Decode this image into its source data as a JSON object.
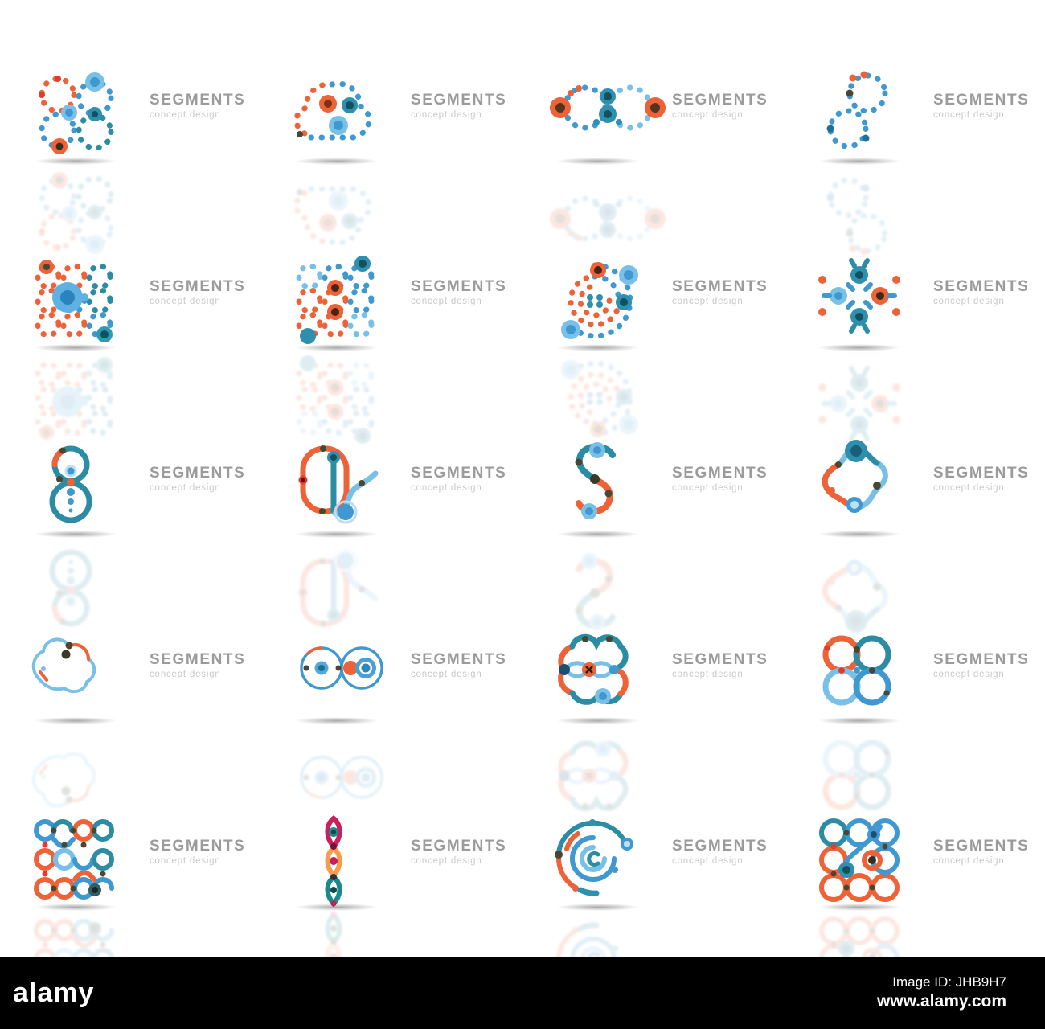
{
  "page": {
    "background": "#ffffff"
  },
  "colors": {
    "orange": "#ee6238",
    "blue": "#3f98cf",
    "teal": "#2b8ca3",
    "light_blue": "#79c0e8",
    "magenta": "#c81f5e",
    "title_gray": "#9b9b9b",
    "tagline_gray": "#c9c9c9",
    "bar_black": "#000000"
  },
  "logos": [
    {
      "name": "dotted-eight-pair",
      "title": "SEGMENTS",
      "tagline": "concept design"
    },
    {
      "name": "dotted-cloud-triangle",
      "title": "SEGMENTS",
      "tagline": "concept design"
    },
    {
      "name": "dotted-infinity",
      "title": "SEGMENTS",
      "tagline": "concept design"
    },
    {
      "name": "dotted-s-curve",
      "title": "SEGMENTS",
      "tagline": "concept design"
    },
    {
      "name": "dotted-grid-blue-dot",
      "title": "SEGMENTS",
      "tagline": "concept design"
    },
    {
      "name": "dotted-grid-orange-dots",
      "title": "SEGMENTS",
      "tagline": "concept design"
    },
    {
      "name": "dotted-spiral",
      "title": "SEGMENTS",
      "tagline": "concept design"
    },
    {
      "name": "dot-cross-star",
      "title": "SEGMENTS",
      "tagline": "concept design"
    },
    {
      "name": "peanut-outline",
      "title": "SEGMENTS",
      "tagline": "concept design"
    },
    {
      "name": "rounded-rect-swoosh",
      "title": "SEGMENTS",
      "tagline": "concept design"
    },
    {
      "name": "letter-s",
      "title": "SEGMENTS",
      "tagline": "concept design"
    },
    {
      "name": "four-lobe-clover",
      "title": "SEGMENTS",
      "tagline": "concept design"
    },
    {
      "name": "heart-blob-outline",
      "title": "SEGMENTS",
      "tagline": "concept design"
    },
    {
      "name": "dumbbell-outline",
      "title": "SEGMENTS",
      "tagline": "concept design"
    },
    {
      "name": "double-loop-knot",
      "title": "SEGMENTS",
      "tagline": "concept design"
    },
    {
      "name": "four-rings",
      "title": "SEGMENTS",
      "tagline": "concept design"
    },
    {
      "name": "curve-maze-square",
      "title": "SEGMENTS",
      "tagline": "concept design"
    },
    {
      "name": "leaf-chain",
      "title": "SEGMENTS",
      "tagline": "concept design"
    },
    {
      "name": "concentric-arcs",
      "title": "SEGMENTS",
      "tagline": "concept design"
    },
    {
      "name": "nine-ring-cluster",
      "title": "SEGMENTS",
      "tagline": "concept design"
    }
  ],
  "watermark": {
    "brand": "alamy",
    "image_id": "Image ID: JHB9H7",
    "url": "www.alamy.com"
  }
}
